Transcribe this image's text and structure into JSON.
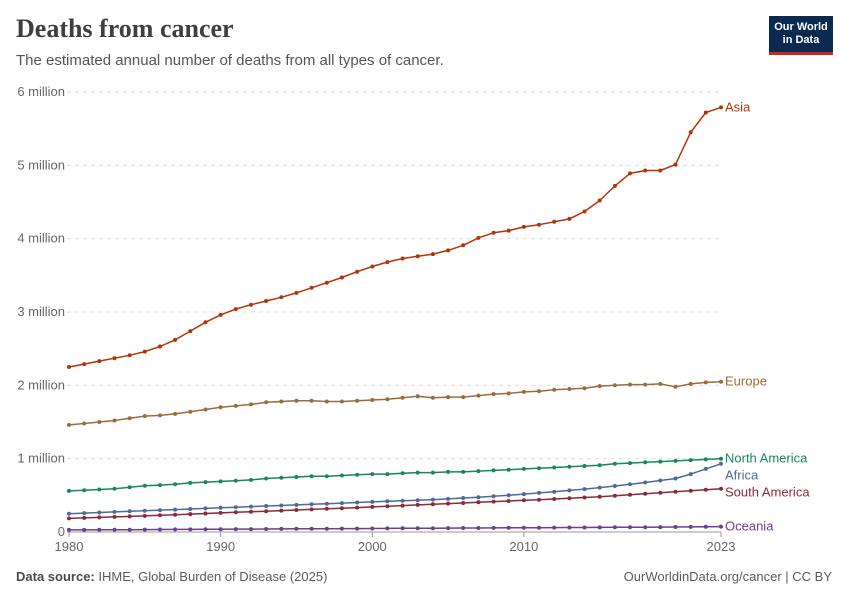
{
  "header": {
    "title": "Deaths from cancer",
    "subtitle": "The estimated annual number of deaths from all types of cancer."
  },
  "logo": {
    "line1": "Our World",
    "line2": "in Data"
  },
  "footer": {
    "source_label": "Data source:",
    "source_text": "IHME, Global Burden of Disease (2025)",
    "credit": "OurWorldinData.org/cancer | CC BY"
  },
  "chart_data": {
    "type": "line",
    "title": "Deaths from cancer",
    "xlabel": "",
    "ylabel": "",
    "xlim": [
      1980,
      2023
    ],
    "ylim": [
      0,
      6000000
    ],
    "y_ticks": [
      0,
      1000000,
      2000000,
      3000000,
      4000000,
      5000000,
      6000000
    ],
    "y_tick_labels": [
      "0",
      "1 million",
      "2 million",
      "3 million",
      "4 million",
      "5 million",
      "6 million"
    ],
    "x_ticks": [
      1980,
      1990,
      2000,
      2010,
      2023
    ],
    "x_tick_labels": [
      "1980",
      "1990",
      "2000",
      "2010",
      "2023"
    ],
    "grid": true,
    "legend": "labels at line ends (right)",
    "x": [
      1980,
      1981,
      1982,
      1983,
      1984,
      1985,
      1986,
      1987,
      1988,
      1989,
      1990,
      1991,
      1992,
      1993,
      1994,
      1995,
      1996,
      1997,
      1998,
      1999,
      2000,
      2001,
      2002,
      2003,
      2004,
      2005,
      2006,
      2007,
      2008,
      2009,
      2010,
      2011,
      2012,
      2013,
      2014,
      2015,
      2016,
      2017,
      2018,
      2019,
      2020,
      2021,
      2022,
      2023
    ],
    "series": [
      {
        "name": "Asia",
        "color": "#b13507",
        "values": [
          2250000,
          2290000,
          2330000,
          2370000,
          2410000,
          2460000,
          2530000,
          2620000,
          2740000,
          2860000,
          2960000,
          3040000,
          3100000,
          3150000,
          3200000,
          3260000,
          3330000,
          3400000,
          3470000,
          3550000,
          3620000,
          3680000,
          3730000,
          3760000,
          3790000,
          3840000,
          3910000,
          4010000,
          4080000,
          4110000,
          4160000,
          4190000,
          4230000,
          4270000,
          4370000,
          4520000,
          4720000,
          4890000,
          4930000,
          4930000,
          5010000,
          5450000,
          5720000,
          5790000
        ]
      },
      {
        "name": "Europe",
        "color": "#996d39",
        "values": [
          1460000,
          1480000,
          1500000,
          1520000,
          1550000,
          1580000,
          1590000,
          1610000,
          1640000,
          1670000,
          1700000,
          1720000,
          1740000,
          1770000,
          1780000,
          1790000,
          1790000,
          1780000,
          1780000,
          1790000,
          1800000,
          1810000,
          1830000,
          1850000,
          1830000,
          1840000,
          1840000,
          1860000,
          1880000,
          1890000,
          1910000,
          1920000,
          1940000,
          1950000,
          1960000,
          1990000,
          2000000,
          2010000,
          2010000,
          2020000,
          1980000,
          2020000,
          2040000,
          2050000
        ]
      },
      {
        "name": "North America",
        "color": "#18875e",
        "values": [
          560000,
          570000,
          580000,
          590000,
          610000,
          630000,
          640000,
          650000,
          670000,
          680000,
          690000,
          700000,
          710000,
          730000,
          740000,
          750000,
          760000,
          760000,
          770000,
          780000,
          790000,
          790000,
          800000,
          810000,
          810000,
          820000,
          820000,
          830000,
          840000,
          850000,
          860000,
          870000,
          880000,
          890000,
          900000,
          910000,
          930000,
          940000,
          950000,
          960000,
          970000,
          980000,
          990000,
          1000000
        ]
      },
      {
        "name": "Africa",
        "color": "#4c6a9c",
        "values": [
          250000,
          258000,
          266000,
          274000,
          282000,
          290000,
          298000,
          306000,
          314000,
          322000,
          330000,
          338000,
          346000,
          354000,
          362000,
          370000,
          378000,
          386000,
          394000,
          402000,
          410000,
          418000,
          426000,
          434000,
          442000,
          452000,
          463000,
          475000,
          488000,
          502000,
          517000,
          533000,
          550000,
          567000,
          585000,
          605000,
          627000,
          650000,
          675000,
          702000,
          730000,
          790000,
          860000,
          930000
        ]
      },
      {
        "name": "South America",
        "color": "#8a2b3b",
        "values": [
          185000,
          192000,
          199000,
          206000,
          213000,
          220000,
          228000,
          236000,
          244000,
          252000,
          260000,
          268000,
          276000,
          284000,
          292000,
          300000,
          308000,
          316000,
          324000,
          333000,
          342000,
          351000,
          360000,
          369000,
          378000,
          387000,
          396000,
          405000,
          414000,
          423000,
          432000,
          441000,
          450000,
          459000,
          470000,
          482000,
          495000,
          508000,
          521000,
          534000,
          548000,
          562000,
          576000,
          590000
        ]
      },
      {
        "name": "Oceania",
        "color": "#6d3e91",
        "values": [
          28000,
          29000,
          30000,
          31000,
          32000,
          33000,
          34000,
          35000,
          36000,
          37000,
          38000,
          39000,
          40000,
          41000,
          42000,
          43000,
          44000,
          45000,
          46000,
          47000,
          48000,
          49000,
          50000,
          51000,
          52000,
          53000,
          54000,
          55000,
          56000,
          57000,
          58000,
          59000,
          60000,
          61000,
          62000,
          63000,
          64000,
          65000,
          66000,
          67000,
          68000,
          69000,
          71000,
          74000
        ]
      }
    ]
  }
}
